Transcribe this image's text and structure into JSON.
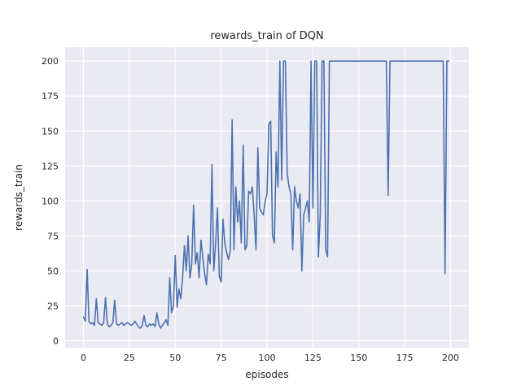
{
  "chart_data": {
    "type": "line",
    "title": "rewards_train of DQN",
    "xlabel": "episodes",
    "ylabel": "rewards_train",
    "xlim": [
      -10,
      210
    ],
    "ylim": [
      -5,
      210
    ],
    "xticks": [
      0,
      25,
      50,
      75,
      100,
      125,
      150,
      175,
      200
    ],
    "yticks": [
      0,
      25,
      50,
      75,
      100,
      125,
      150,
      175,
      200
    ],
    "grid": "on",
    "legend": "none",
    "line_color": "#4c72b0",
    "axes_bg": "#eaeaf2",
    "grid_color": "#ffffff",
    "figure_bg": "#ffffff",
    "x_start": 0,
    "x_step": 1,
    "values": [
      17,
      14,
      51,
      14,
      12,
      13,
      11,
      30,
      13,
      12,
      11,
      13,
      31,
      12,
      10,
      11,
      13,
      29,
      12,
      11,
      12,
      13,
      11,
      12,
      13,
      12,
      11,
      12,
      14,
      12,
      10,
      9,
      11,
      18,
      11,
      10,
      12,
      11,
      12,
      10,
      20,
      12,
      9,
      11,
      13,
      15,
      11,
      45,
      20,
      25,
      61,
      24,
      37,
      30,
      45,
      68,
      50,
      75,
      45,
      55,
      97,
      55,
      63,
      45,
      72,
      60,
      48,
      40,
      62,
      55,
      126,
      50,
      70,
      95,
      46,
      42,
      87,
      70,
      63,
      58,
      65,
      158,
      65,
      110,
      85,
      100,
      70,
      140,
      65,
      68,
      107,
      105,
      110,
      90,
      65,
      138,
      95,
      92,
      90,
      100,
      105,
      155,
      157,
      75,
      70,
      135,
      110,
      200,
      115,
      200,
      200,
      120,
      110,
      105,
      65,
      110,
      100,
      95,
      105,
      50,
      90,
      95,
      100,
      85,
      200,
      95,
      200,
      200,
      60,
      90,
      200,
      200,
      65,
      60,
      200,
      200,
      200,
      200,
      200,
      200,
      200,
      200,
      200,
      200,
      200,
      200,
      200,
      200,
      200,
      200,
      200,
      200,
      200,
      200,
      200,
      200,
      200,
      200,
      200,
      200,
      200,
      200,
      200,
      200,
      200,
      200,
      104,
      200,
      200,
      200,
      200,
      200,
      200,
      200,
      200,
      200,
      200,
      200,
      200,
      200,
      200,
      200,
      200,
      200,
      200,
      200,
      200,
      200,
      200,
      200,
      200,
      200,
      200,
      200,
      200,
      200,
      200,
      48,
      200,
      200
    ]
  }
}
